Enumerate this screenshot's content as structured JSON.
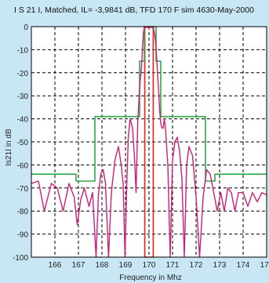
{
  "chart_data": {
    "type": "line",
    "title": "Ι S 21 Ι, Matched, ΙL= -3,9841 dB, TFD 170 F sim 4630-May-2000",
    "xlabel": "Frequency in Mhz",
    "ylabel": "Ιs21Ι in dB",
    "xlim": [
      165,
      175
    ],
    "ylim": [
      -100,
      0
    ],
    "grid": true,
    "x_ticks": [
      "166",
      "167",
      "168",
      "169",
      "170",
      "171",
      "172",
      "173",
      "174",
      "175"
    ],
    "y_ticks": [
      "0",
      "-10",
      "-20",
      "-30",
      "-40",
      "-50",
      "-60",
      "-70",
      "-80",
      "-90",
      "-100"
    ],
    "colors": {
      "response": "#cc1f7a",
      "mask": "#2eaa4a",
      "band": "#e03020",
      "background": "#c8e6f4"
    },
    "passband_markers": {
      "x": [
        169.82,
        170.18
      ],
      "color": "#e03020"
    },
    "series": [
      {
        "role": "mask",
        "x": [
          165,
          166.9,
          166.9,
          167.7,
          167.7,
          169.6,
          169.6,
          169.8,
          169.8,
          170.3,
          170.3,
          170.5,
          170.5,
          172.4,
          172.4,
          172.8,
          172.8,
          175
        ],
        "values": [
          -64,
          -64,
          -67,
          -67,
          -39,
          -39,
          -15,
          -15,
          0,
          0,
          -15,
          -15,
          -39,
          -39,
          -67,
          -67,
          -64,
          -64
        ]
      },
      {
        "role": "response",
        "x": [
          165,
          165.3,
          165.55,
          165.85,
          166.1,
          166.35,
          166.6,
          166.82,
          166.95,
          167.1,
          167.25,
          167.45,
          167.6,
          167.75,
          167.85,
          167.95,
          168.05,
          168.15,
          168.28,
          168.4,
          168.55,
          168.7,
          168.82,
          168.9,
          168.98,
          169.05,
          169.12,
          169.2,
          169.3,
          169.38,
          169.45,
          169.52,
          169.58,
          169.62,
          169.66,
          169.7,
          169.73,
          169.76,
          169.8,
          169.85,
          169.9,
          169.95,
          170.0,
          170.05,
          170.1,
          170.15,
          170.2,
          170.25,
          170.3,
          170.33,
          170.36,
          170.4,
          170.45,
          170.5,
          170.55,
          170.6,
          170.65,
          170.7,
          170.8,
          170.9,
          171.0,
          171.1,
          171.2,
          171.3,
          171.4,
          171.5,
          171.6,
          171.7,
          171.85,
          172.0,
          172.15,
          172.3,
          172.45,
          172.6,
          172.75,
          172.9,
          173.05,
          173.2,
          173.35,
          173.5,
          173.65,
          173.8,
          174.0,
          174.2,
          174.4,
          174.6,
          174.8,
          175.0
        ],
        "values": [
          -68,
          -67,
          -80,
          -68,
          -70,
          -80,
          -68,
          -74,
          -86,
          -75,
          -70,
          -78,
          -72,
          -100,
          -73,
          -64,
          -62,
          -68,
          -100,
          -72,
          -58,
          -52,
          -60,
          -68,
          -100,
          -70,
          -48,
          -40,
          -44,
          -56,
          -72,
          -42,
          -30,
          -24,
          -20,
          -14,
          -8,
          -3,
          -0.5,
          -0.2,
          -0.3,
          -0.2,
          -0.5,
          -0.3,
          -0.2,
          -0.4,
          -1,
          -4,
          -9,
          -14,
          -20,
          -26,
          -36,
          -42,
          -44,
          -44,
          -40,
          -44,
          -60,
          -100,
          -58,
          -50,
          -48,
          -54,
          -66,
          -100,
          -60,
          -52,
          -56,
          -74,
          -100,
          -74,
          -62,
          -64,
          -72,
          -80,
          -72,
          -80,
          -70,
          -72,
          -80,
          -72,
          -72,
          -78,
          -72,
          -76,
          -72,
          -73
        ]
      }
    ]
  }
}
